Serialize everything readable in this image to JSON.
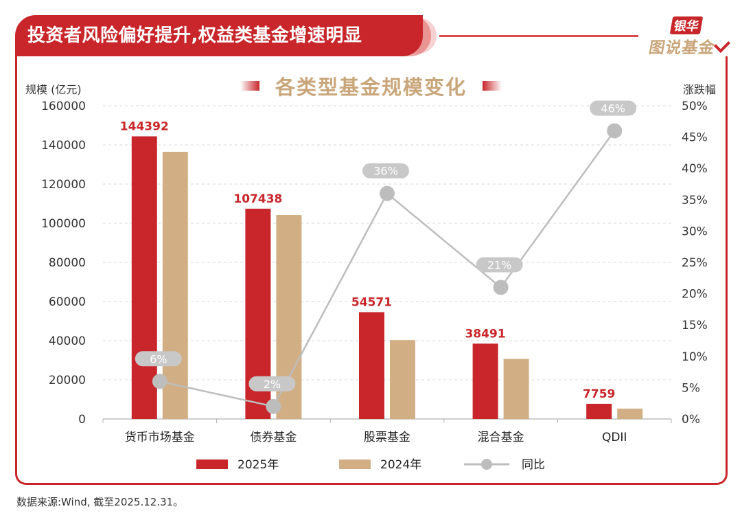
{
  "header": {
    "title": "投资者风险偏好提升,权益类基金增速明显",
    "logo_top": "银华",
    "logo_bottom": "图说基金"
  },
  "chart_data": {
    "type": "bar",
    "title": "各类型基金规模变化",
    "ylabel": "规模 (亿元)",
    "y2label": "涨跌幅",
    "ylim": [
      0,
      160000
    ],
    "y2lim": [
      0,
      50
    ],
    "y_ticks": [
      "0",
      "20000",
      "40000",
      "60000",
      "80000",
      "100000",
      "120000",
      "140000",
      "160000"
    ],
    "y2_ticks": [
      "0%",
      "5%",
      "10%",
      "15%",
      "20%",
      "25%",
      "30%",
      "35%",
      "40%",
      "45%",
      "50%"
    ],
    "categories": [
      "货币市场基金",
      "债券基金",
      "股票基金",
      "混合基金",
      "QDII"
    ],
    "series": [
      {
        "name": "2025年",
        "kind": "bar",
        "color": "#c8262a",
        "values": [
          144392,
          107438,
          54571,
          38491,
          7759
        ],
        "labels": [
          "144392",
          "107438",
          "54571",
          "38491",
          "7759"
        ]
      },
      {
        "name": "2024年",
        "kind": "bar",
        "color": "#d2ae84",
        "values": [
          136500,
          104200,
          40300,
          30700,
          5300
        ]
      },
      {
        "name": "同比",
        "kind": "line",
        "axis": "right",
        "color": "#bdbdbd",
        "values": [
          6,
          2,
          36,
          21,
          46
        ],
        "labels": [
          "6%",
          "2%",
          "36%",
          "21%",
          "46%"
        ]
      }
    ],
    "grid": true,
    "legend": "bottom"
  },
  "footer": {
    "source": "数据来源:Wind, 截至2025.12.31。"
  }
}
